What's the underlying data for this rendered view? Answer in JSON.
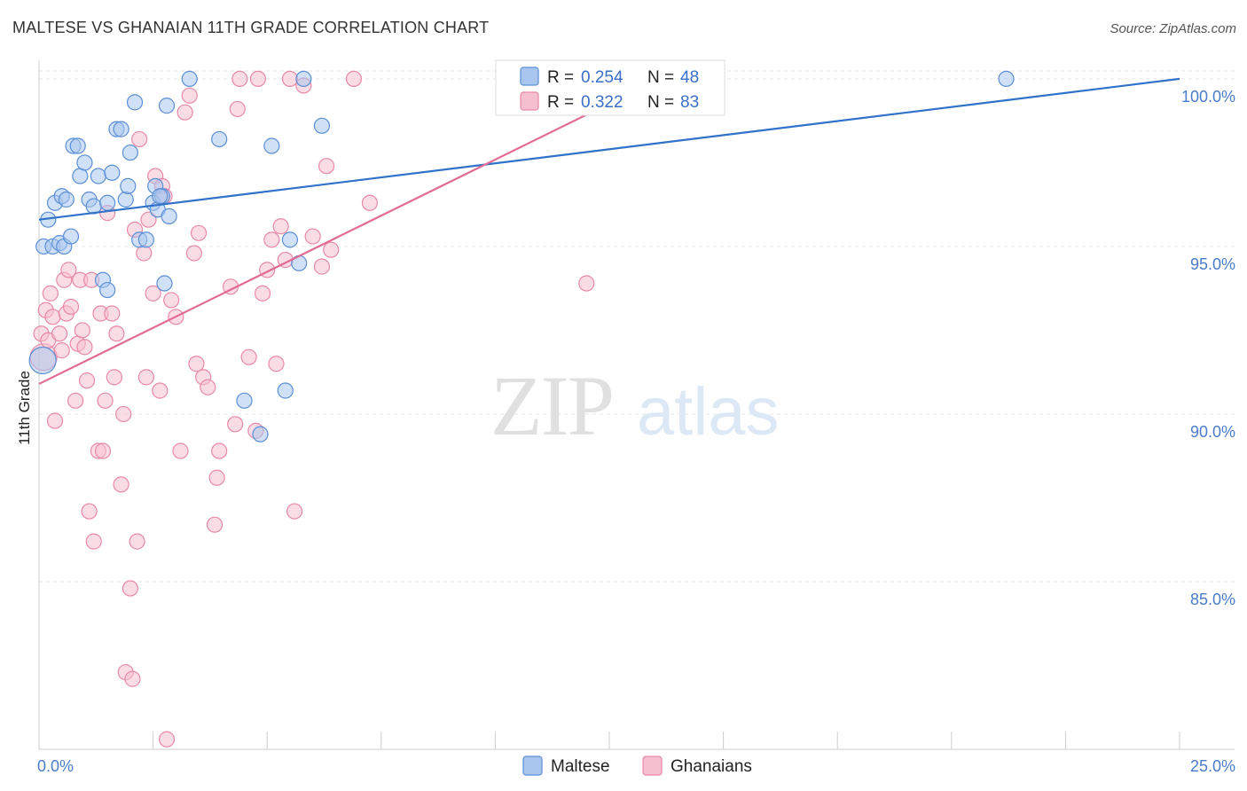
{
  "title": "MALTESE VS GHANAIAN 11TH GRADE CORRELATION CHART",
  "source": "Source: ZipAtlas.com",
  "watermark": {
    "zip": "ZIP",
    "atlas": "atlas"
  },
  "colors": {
    "blue_fill": "#a9c6ee",
    "blue_stroke": "#5b8fd6",
    "blue_line": "#2f72c8",
    "pink_fill": "#f6bfd0",
    "pink_stroke": "#e889a8",
    "pink_line": "#e26b96",
    "grid": "#e4e4e4",
    "axis_text": "#4a7cc9"
  },
  "legend": {
    "rows": [
      {
        "r_label": "R = ",
        "r_value": "0.254",
        "n_label": "N = ",
        "n_value": "48",
        "series": "Maltese"
      },
      {
        "r_label": "R = ",
        "r_value": "0.322",
        "n_label": "N = ",
        "n_value": "83",
        "series": "Ghanaians"
      }
    ]
  },
  "chart_data": {
    "type": "scatter",
    "title": "MALTESE VS GHANAIAN 11TH GRADE CORRELATION CHART",
    "xlabel": "",
    "ylabel": "11th Grade",
    "xlim": [
      0,
      25
    ],
    "ylim": [
      80,
      100.5
    ],
    "x_tick_labels": [
      "0.0%",
      "25.0%"
    ],
    "y_ticks": [
      85,
      90,
      95,
      100
    ],
    "y_tick_labels": [
      "85.0%",
      "90.0%",
      "95.0%",
      "100.0%"
    ],
    "grid": true,
    "legend_position": "top-center",
    "series": [
      {
        "name": "Maltese",
        "color": "#5b8fd6",
        "trend": {
          "x": [
            0,
            25
          ],
          "y": [
            95.8,
            100.0
          ]
        },
        "points": [
          [
            0.08,
            91.6
          ],
          [
            0.1,
            95.0
          ],
          [
            0.2,
            95.8
          ],
          [
            0.3,
            95.0
          ],
          [
            0.35,
            96.3
          ],
          [
            0.45,
            95.1
          ],
          [
            0.5,
            96.5
          ],
          [
            0.55,
            95.0
          ],
          [
            0.6,
            96.4
          ],
          [
            0.7,
            95.3
          ],
          [
            0.75,
            98.0
          ],
          [
            0.85,
            98.0
          ],
          [
            0.9,
            97.1
          ],
          [
            1.0,
            97.5
          ],
          [
            1.1,
            96.4
          ],
          [
            1.2,
            96.2
          ],
          [
            1.3,
            97.1
          ],
          [
            1.4,
            94.0
          ],
          [
            1.5,
            96.3
          ],
          [
            1.6,
            97.2
          ],
          [
            1.7,
            98.5
          ],
          [
            1.8,
            98.5
          ],
          [
            1.9,
            96.4
          ],
          [
            2.0,
            97.8
          ],
          [
            2.1,
            99.3
          ],
          [
            2.2,
            95.2
          ],
          [
            2.35,
            95.2
          ],
          [
            2.5,
            96.3
          ],
          [
            2.55,
            96.8
          ],
          [
            2.6,
            96.1
          ],
          [
            2.7,
            96.5
          ],
          [
            2.75,
            93.9
          ],
          [
            2.8,
            99.2
          ],
          [
            2.85,
            95.9
          ],
          [
            1.5,
            93.7
          ],
          [
            1.95,
            96.8
          ],
          [
            3.3,
            100.0
          ],
          [
            3.95,
            98.2
          ],
          [
            4.5,
            90.4
          ],
          [
            4.85,
            89.4
          ],
          [
            5.1,
            98.0
          ],
          [
            5.4,
            90.7
          ],
          [
            5.5,
            95.2
          ],
          [
            5.7,
            94.5
          ],
          [
            5.8,
            100.0
          ],
          [
            6.2,
            98.6
          ],
          [
            2.65,
            96.5
          ],
          [
            21.2,
            100.0
          ]
        ]
      },
      {
        "name": "Ghanaians",
        "color": "#e889a8",
        "trend": {
          "x": [
            0,
            13.6
          ],
          "y": [
            90.9,
            100.0
          ]
        },
        "points": [
          [
            0.05,
            92.4
          ],
          [
            0.1,
            91.7
          ],
          [
            0.15,
            93.1
          ],
          [
            0.2,
            92.2
          ],
          [
            0.25,
            93.6
          ],
          [
            0.3,
            92.9
          ],
          [
            0.35,
            89.8
          ],
          [
            0.45,
            92.4
          ],
          [
            0.5,
            91.9
          ],
          [
            0.55,
            94.0
          ],
          [
            0.6,
            93.0
          ],
          [
            0.65,
            94.3
          ],
          [
            0.7,
            93.2
          ],
          [
            0.8,
            90.4
          ],
          [
            0.85,
            92.1
          ],
          [
            0.9,
            94.0
          ],
          [
            0.95,
            92.5
          ],
          [
            1.0,
            92.0
          ],
          [
            1.05,
            91.0
          ],
          [
            1.1,
            87.1
          ],
          [
            1.15,
            94.0
          ],
          [
            1.2,
            86.2
          ],
          [
            1.3,
            88.9
          ],
          [
            1.35,
            93.0
          ],
          [
            1.4,
            88.9
          ],
          [
            1.45,
            90.4
          ],
          [
            1.5,
            96.0
          ],
          [
            1.6,
            93.0
          ],
          [
            1.65,
            91.1
          ],
          [
            1.7,
            92.4
          ],
          [
            1.8,
            87.9
          ],
          [
            1.85,
            90.0
          ],
          [
            1.9,
            82.3
          ],
          [
            2.0,
            84.8
          ],
          [
            2.05,
            82.1
          ],
          [
            2.1,
            95.5
          ],
          [
            2.15,
            86.2
          ],
          [
            2.2,
            98.2
          ],
          [
            2.3,
            94.8
          ],
          [
            2.35,
            91.1
          ],
          [
            2.4,
            95.8
          ],
          [
            2.5,
            93.6
          ],
          [
            2.55,
            97.1
          ],
          [
            2.65,
            90.7
          ],
          [
            2.7,
            96.8
          ],
          [
            2.75,
            96.5
          ],
          [
            2.8,
            80.3
          ],
          [
            2.9,
            93.4
          ],
          [
            3.0,
            92.9
          ],
          [
            3.1,
            88.9
          ],
          [
            3.2,
            99.0
          ],
          [
            3.3,
            99.5
          ],
          [
            3.4,
            94.8
          ],
          [
            3.45,
            91.5
          ],
          [
            3.5,
            95.4
          ],
          [
            3.6,
            91.1
          ],
          [
            3.7,
            90.8
          ],
          [
            3.85,
            86.7
          ],
          [
            3.9,
            88.1
          ],
          [
            3.95,
            88.9
          ],
          [
            4.2,
            93.8
          ],
          [
            4.3,
            89.7
          ],
          [
            4.35,
            99.1
          ],
          [
            4.4,
            100.0
          ],
          [
            4.6,
            91.7
          ],
          [
            4.75,
            89.5
          ],
          [
            4.8,
            100.0
          ],
          [
            4.9,
            93.6
          ],
          [
            5.0,
            94.3
          ],
          [
            5.1,
            95.2
          ],
          [
            5.2,
            91.5
          ],
          [
            5.3,
            95.6
          ],
          [
            5.4,
            94.6
          ],
          [
            5.5,
            100.0
          ],
          [
            5.6,
            87.1
          ],
          [
            5.8,
            99.8
          ],
          [
            6.0,
            95.3
          ],
          [
            6.2,
            94.4
          ],
          [
            6.3,
            97.4
          ],
          [
            6.4,
            94.9
          ],
          [
            6.9,
            100.0
          ],
          [
            7.25,
            96.3
          ],
          [
            12.0,
            93.9
          ]
        ]
      }
    ]
  },
  "bottom_legend": [
    {
      "label": "Maltese"
    },
    {
      "label": "Ghanaians"
    }
  ]
}
